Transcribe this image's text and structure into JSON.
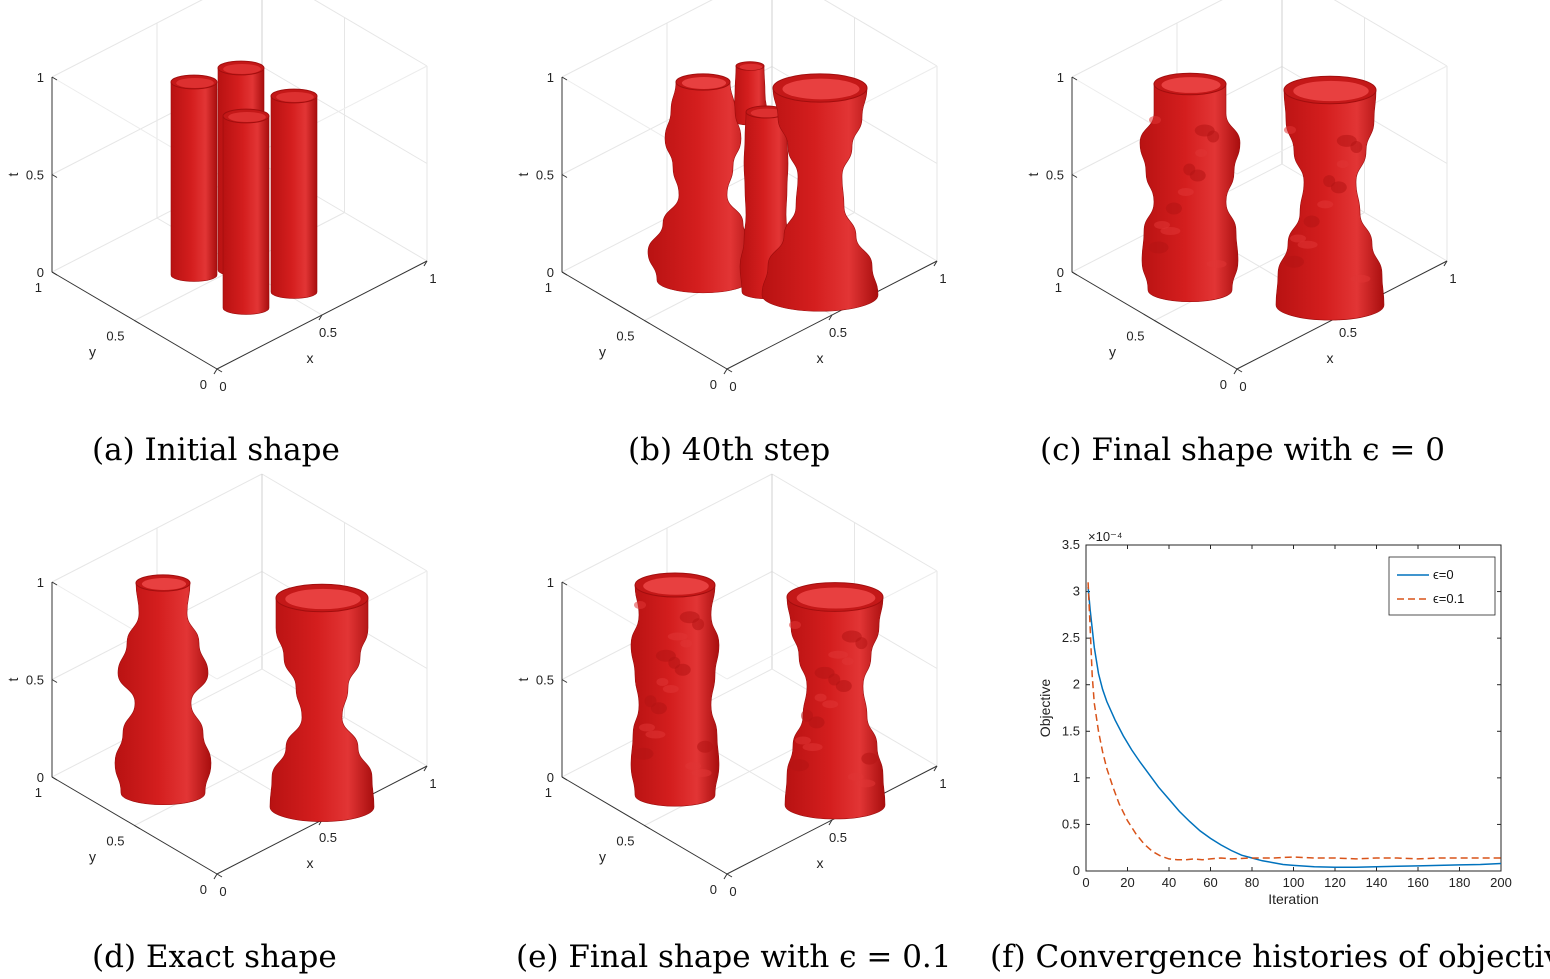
{
  "panels": [
    {
      "id": "a",
      "caption": "(a) Initial shape",
      "axes": {
        "t_label": "t",
        "y_label": "y",
        "x_label": "x",
        "t_ticks": [
          "0",
          "0.5",
          "1"
        ],
        "y_ticks": [
          "0",
          "0.5",
          "1"
        ],
        "x_ticks": [
          "0",
          "0.5",
          "1"
        ]
      }
    },
    {
      "id": "b",
      "caption": "(b) 40th step",
      "axes": {
        "t_label": "t",
        "y_label": "y",
        "x_label": "x",
        "t_ticks": [
          "0",
          "0.5",
          "1"
        ],
        "y_ticks": [
          "0",
          "0.5",
          "1"
        ],
        "x_ticks": [
          "0",
          "0.5",
          "1"
        ]
      }
    },
    {
      "id": "c",
      "caption": "(c) Final shape with ϵ = 0",
      "axes": {
        "t_label": "t",
        "y_label": "y",
        "x_label": "x",
        "t_ticks": [
          "0",
          "0.5",
          "1"
        ],
        "y_ticks": [
          "0",
          "0.5",
          "1"
        ],
        "x_ticks": [
          "0",
          "0.5",
          "1"
        ]
      }
    },
    {
      "id": "d",
      "caption": "(d) Exact shape",
      "axes": {
        "t_label": "t",
        "y_label": "y",
        "x_label": "x",
        "t_ticks": [
          "0",
          "0.5",
          "1"
        ],
        "y_ticks": [
          "0",
          "0.5",
          "1"
        ],
        "x_ticks": [
          "0",
          "0.5",
          "1"
        ]
      }
    },
    {
      "id": "e",
      "caption": "(e) Final shape with ϵ = 0.1",
      "axes": {
        "t_label": "t",
        "y_label": "y",
        "x_label": "x",
        "t_ticks": [
          "0",
          "0.5",
          "1"
        ],
        "y_ticks": [
          "0",
          "0.5",
          "1"
        ],
        "x_ticks": [
          "0",
          "0.5",
          "1"
        ]
      }
    },
    {
      "id": "f",
      "caption": "(f) Convergence histories of objective"
    }
  ],
  "shape_color": "#d41e1e",
  "chart_data": {
    "type": "line",
    "title": "",
    "xlabel": "Iteration",
    "ylabel": "Objective",
    "exponent_label": "×10⁻⁴",
    "xlim": [
      0,
      200
    ],
    "ylim": [
      0,
      3.5
    ],
    "x_ticks": [
      0,
      20,
      40,
      60,
      80,
      100,
      120,
      140,
      160,
      180,
      200
    ],
    "y_ticks": [
      0,
      0.5,
      1,
      1.5,
      2,
      2.5,
      3,
      3.5
    ],
    "y_tick_labels": [
      "0",
      "0.5",
      "1",
      "1.5",
      "2",
      "2.5",
      "3",
      "3.5"
    ],
    "grid": false,
    "legend": "top-right",
    "series": [
      {
        "name": "ϵ=0",
        "color": "#0072bd",
        "dash": "solid",
        "x": [
          1,
          2,
          4,
          6,
          8,
          10,
          14,
          18,
          22,
          26,
          30,
          35,
          40,
          45,
          50,
          55,
          60,
          65,
          70,
          75,
          80,
          85,
          90,
          95,
          100,
          110,
          120,
          130,
          140,
          150,
          160,
          170,
          180,
          190,
          200
        ],
        "y": [
          3.05,
          2.8,
          2.4,
          2.12,
          1.95,
          1.82,
          1.62,
          1.45,
          1.3,
          1.17,
          1.05,
          0.9,
          0.77,
          0.64,
          0.53,
          0.43,
          0.35,
          0.28,
          0.22,
          0.17,
          0.14,
          0.11,
          0.09,
          0.07,
          0.06,
          0.045,
          0.04,
          0.04,
          0.045,
          0.05,
          0.055,
          0.06,
          0.065,
          0.07,
          0.08
        ]
      },
      {
        "name": "ϵ=0.1",
        "color": "#d95319",
        "dash": "dashed",
        "x": [
          1,
          2,
          3,
          4,
          6,
          8,
          10,
          13,
          16,
          20,
          24,
          28,
          32,
          36,
          40,
          44,
          48,
          52,
          56,
          60,
          65,
          70,
          80,
          90,
          100,
          110,
          120,
          130,
          140,
          150,
          160,
          170,
          180,
          190,
          200
        ],
        "y": [
          3.1,
          2.6,
          2.1,
          1.8,
          1.5,
          1.28,
          1.1,
          0.9,
          0.72,
          0.54,
          0.4,
          0.29,
          0.21,
          0.16,
          0.13,
          0.12,
          0.12,
          0.13,
          0.12,
          0.13,
          0.14,
          0.13,
          0.14,
          0.14,
          0.15,
          0.14,
          0.14,
          0.13,
          0.14,
          0.14,
          0.13,
          0.14,
          0.14,
          0.14,
          0.14
        ]
      }
    ]
  }
}
